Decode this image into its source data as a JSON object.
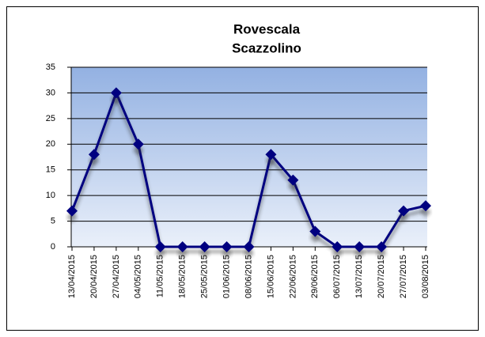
{
  "chart_data": {
    "type": "line",
    "title": [
      "Rovescala",
      "Scazzolino"
    ],
    "categories": [
      "13/04/2015",
      "20/04/2015",
      "27/04/2015",
      "04/05/2015",
      "11/05/2015",
      "18/05/2015",
      "25/05/2015",
      "01/06/2015",
      "08/06/2015",
      "15/06/2015",
      "22/06/2015",
      "29/06/2015",
      "06/07/2015",
      "13/07/2015",
      "20/07/2015",
      "27/07/2015",
      "03/08/2015"
    ],
    "series": [
      {
        "color": "#000080",
        "values": [
          7,
          18,
          30,
          20,
          0,
          0,
          0,
          0,
          0,
          18,
          13,
          3,
          0,
          0,
          0,
          7,
          8
        ]
      }
    ],
    "ylim": [
      0,
      35
    ],
    "yticks": [
      0,
      5,
      10,
      15,
      20,
      25,
      30,
      35
    ],
    "grid": true
  }
}
